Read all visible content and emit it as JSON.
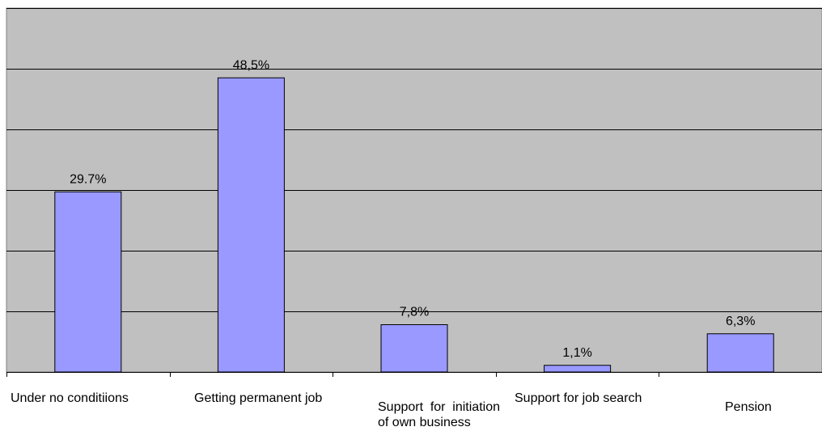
{
  "chart_data": {
    "type": "bar",
    "categories": [
      "Under no conditiions",
      "Getting permanent job",
      "Support for initiation of own business",
      "Support for job search",
      "Pension"
    ],
    "values": [
      29.7,
      48.5,
      7.8,
      1.1,
      6.3
    ],
    "data_labels": [
      "29.7%",
      "48,5%",
      "7,8%",
      "1,1%",
      "6,3%"
    ],
    "ylim": [
      0,
      60
    ],
    "grid": true,
    "colors": {
      "plot_bg": "#c0c0c0",
      "bar": "#9999ff",
      "bar_edge": "#000000",
      "grid": "#000000"
    }
  }
}
